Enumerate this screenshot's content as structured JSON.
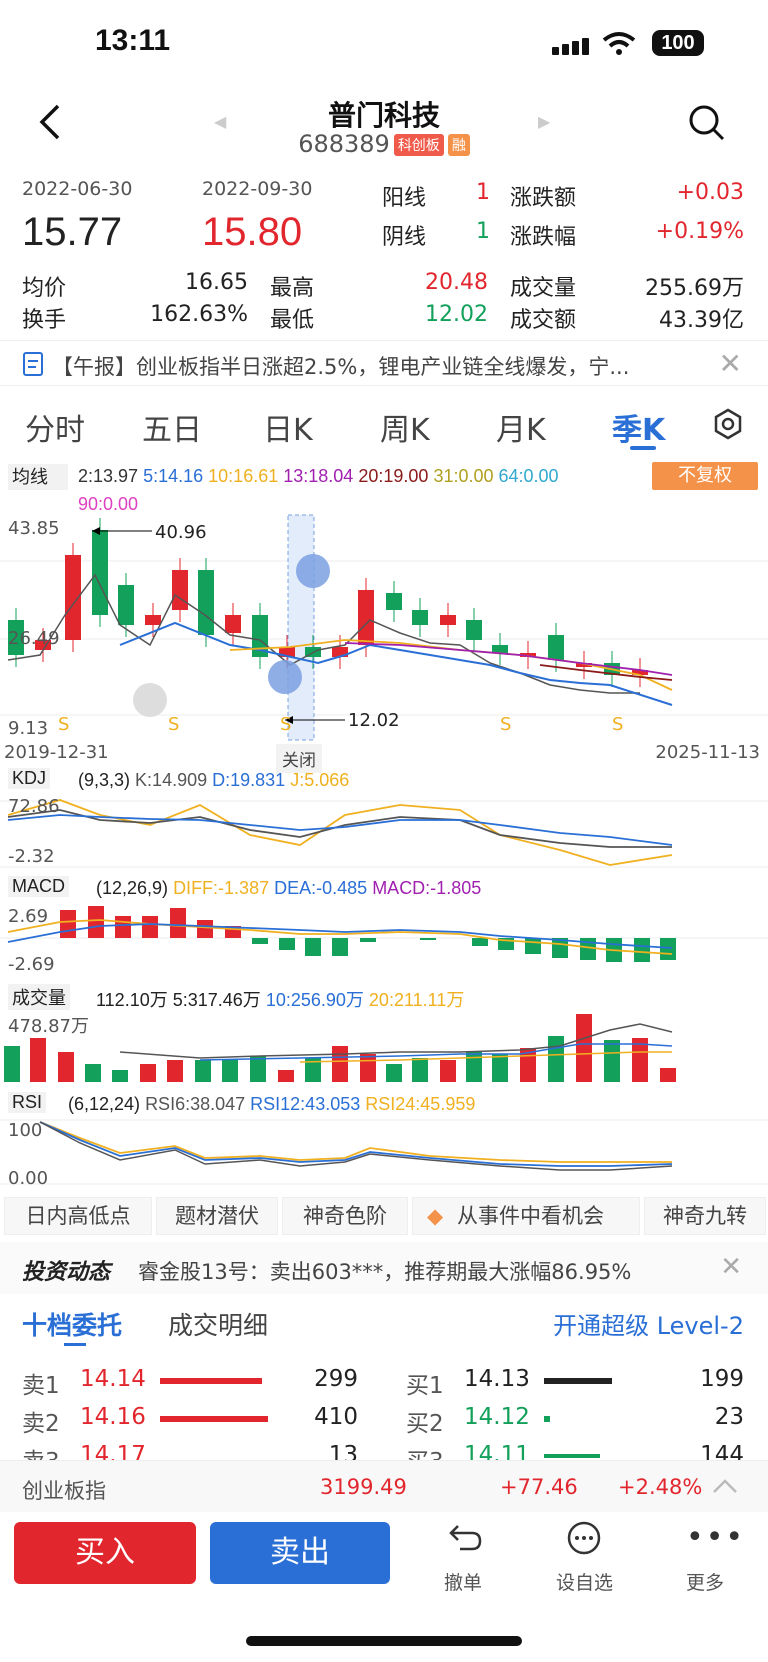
{
  "status": {
    "time": "13:11",
    "battery": "100"
  },
  "stock": {
    "name": "普门科技",
    "code": "688389",
    "tag1": "科创板",
    "tag2": "融"
  },
  "quote": {
    "date1": "2022-06-30",
    "date2": "2022-09-30",
    "open": "15.77",
    "close": "15.80",
    "yang_label": "阳线",
    "yang": "1",
    "yin_label": "阴线",
    "yin": "1",
    "chg_amt_label": "涨跌额",
    "chg_amt": "+0.03",
    "chg_pct_label": "涨跌幅",
    "chg_pct": "+0.19%",
    "avg_label": "均价",
    "avg": "16.65",
    "high_label": "最高",
    "high": "20.48",
    "vol_label": "成交量",
    "vol": "255.69万",
    "turn_label": "换手",
    "turn": "162.63%",
    "low_label": "最低",
    "low": "12.02",
    "amt_label": "成交额",
    "amt": "43.39亿"
  },
  "news": {
    "text": "【午报】创业板指半日涨超2.5%，锂电产业链全线爆发，宁..."
  },
  "tabs": [
    "分时",
    "五日",
    "日K",
    "周K",
    "月K",
    "季K"
  ],
  "ma": {
    "label": "均线",
    "m2": "2:13.97",
    "m5": "5:14.16",
    "m10": "10:16.61",
    "m13": "13:18.04",
    "m20": "20:19.00",
    "m31": "31:0.00",
    "m64": "64:0.00",
    "m90": "90:0.00",
    "adjust": "不复权"
  },
  "kchart": {
    "ymax": "43.85",
    "ymid": "26.49",
    "ymin": "9.13",
    "hi_ann": "40.96",
    "lo_ann": "12.02",
    "start": "2019-12-31",
    "end": "2025-11-13",
    "close_btn": "关闭",
    "s": "S"
  },
  "kdj": {
    "label": "KDJ",
    "params": "(9,3,3)",
    "k": "K:14.909",
    "d": "D:19.831",
    "j": "J:5.066",
    "ymax": "72.86",
    "ymin": "-2.32"
  },
  "macd": {
    "label": "MACD",
    "params": "(12,26,9)",
    "diff": "DIFF:-1.387",
    "dea": "DEA:-0.485",
    "m": "MACD:-1.805",
    "ymax": "2.69",
    "ymin": "-2.69"
  },
  "volume": {
    "label": "成交量",
    "v": "112.10万",
    "v5": "5:317.46万",
    "v10": "10:256.90万",
    "v20": "20:211.11万",
    "ymax": "478.87万"
  },
  "rsi": {
    "label": "RSI",
    "params": "(6,12,24)",
    "r6": "RSI6:38.047",
    "r12": "RSI12:43.053",
    "r24": "RSI24:45.959",
    "ymax": "100",
    "ymin": "0.00"
  },
  "features": [
    "日内高低点",
    "题材潜伏",
    "神奇色阶",
    "从事件中看机会",
    "神奇九转"
  ],
  "invest": {
    "title": "投资动态",
    "text": "睿金股13号：卖出603***，推荐期最大涨幅86.95%"
  },
  "order": {
    "tab1": "十档委托",
    "tab2": "成交明细",
    "level2": "开通超级 Level-2",
    "sells": [
      {
        "l": "卖1",
        "p": "14.14",
        "v": "299"
      },
      {
        "l": "卖2",
        "p": "14.16",
        "v": "410"
      },
      {
        "l": "卖3",
        "p": "14.17",
        "v": "13"
      }
    ],
    "buys": [
      {
        "l": "买1",
        "p": "14.13",
        "v": "199"
      },
      {
        "l": "买2",
        "p": "14.12",
        "v": "23"
      },
      {
        "l": "买3",
        "p": "14.11",
        "v": "144"
      }
    ]
  },
  "index": {
    "name": "创业板指",
    "value": "3199.49",
    "chg": "+77.46",
    "pct": "+2.48%"
  },
  "actions": {
    "buy": "买入",
    "sell": "卖出",
    "cancel": "撤单",
    "watch": "设自选",
    "more": "更多"
  },
  "colors": {
    "up": "#e2262e",
    "down": "#12a05a",
    "accent": "#2a6fd6",
    "orange": "#f5924a"
  },
  "chart_data": {
    "type": "candlestick",
    "x": [
      "2019-12-31",
      "2025-11-13"
    ],
    "ylim": [
      9.13,
      43.85
    ],
    "annotations": {
      "high": 40.96,
      "low": 12.02
    }
  }
}
